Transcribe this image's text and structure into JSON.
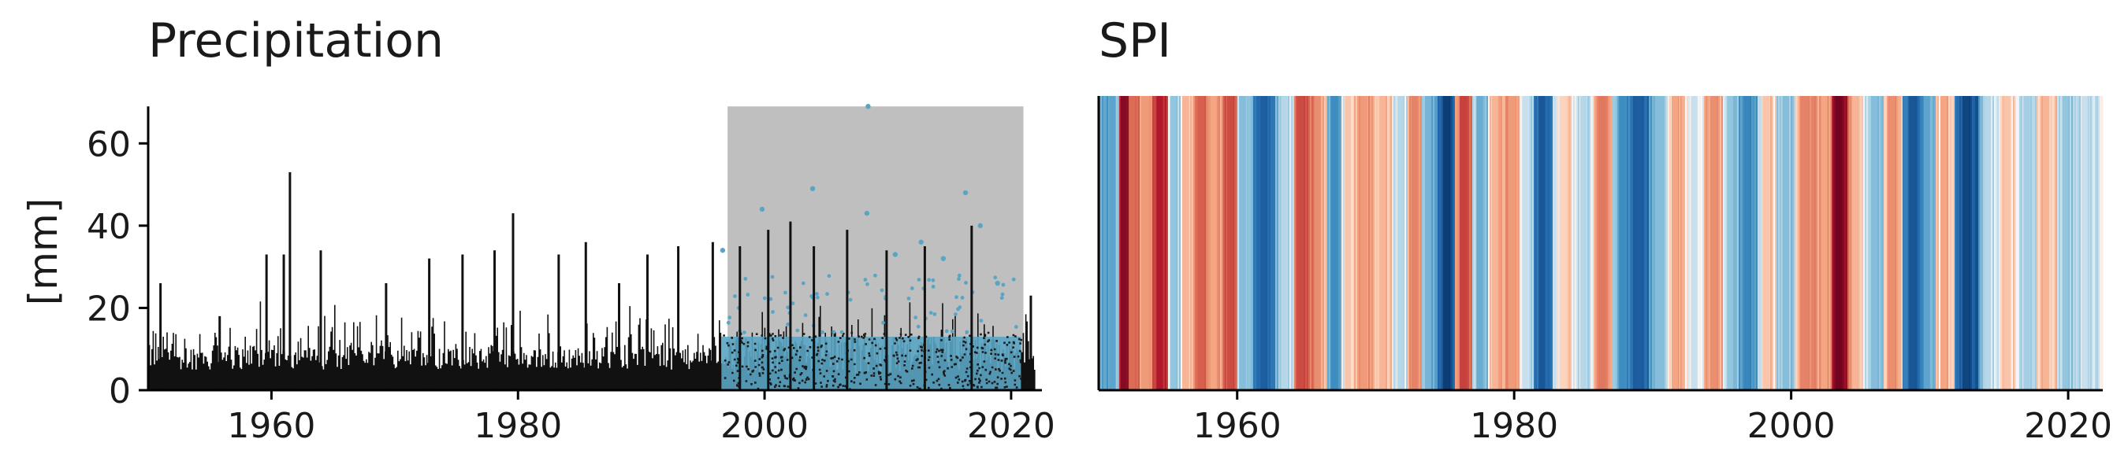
{
  "colors": {
    "precip_bar": "#111111",
    "observed_points": "#5aa5c4",
    "highlight_band": "#bfbfbf",
    "spi_dry": "#b2182b",
    "spi_wet": "#2166ac"
  },
  "chart_data": [
    {
      "type": "bar",
      "title": "Precipitation",
      "xlabel": "",
      "ylabel": "[mm]",
      "xlim": [
        1950,
        2022.5
      ],
      "ylim": [
        0,
        70
      ],
      "x_ticks": [
        "1960",
        "1980",
        "2000",
        "2020"
      ],
      "y_ticks": [
        "0",
        "20",
        "40",
        "60"
      ],
      "highlight_range": [
        1997,
        2021
      ],
      "grid": false,
      "peaks": [
        {
          "x": 1951.0,
          "y": 26
        },
        {
          "x": 1955.8,
          "y": 18
        },
        {
          "x": 1959.6,
          "y": 33
        },
        {
          "x": 1961.0,
          "y": 33
        },
        {
          "x": 1961.5,
          "y": 53
        },
        {
          "x": 1964.0,
          "y": 34
        },
        {
          "x": 1969.3,
          "y": 26
        },
        {
          "x": 1972.8,
          "y": 32
        },
        {
          "x": 1975.5,
          "y": 33
        },
        {
          "x": 1978.1,
          "y": 34
        },
        {
          "x": 1979.6,
          "y": 43
        },
        {
          "x": 1983.3,
          "y": 33
        },
        {
          "x": 1985.5,
          "y": 36
        },
        {
          "x": 1988.2,
          "y": 26
        },
        {
          "x": 1990.5,
          "y": 33
        },
        {
          "x": 1993.0,
          "y": 35
        },
        {
          "x": 1995.8,
          "y": 36
        },
        {
          "x": 1998.0,
          "y": 35
        },
        {
          "x": 2000.3,
          "y": 39
        },
        {
          "x": 2002.1,
          "y": 41
        },
        {
          "x": 2004.0,
          "y": 35
        },
        {
          "x": 2006.7,
          "y": 39
        },
        {
          "x": 2009.9,
          "y": 34
        },
        {
          "x": 2013.0,
          "y": 35
        },
        {
          "x": 2016.8,
          "y": 40
        },
        {
          "x": 2021.6,
          "y": 23
        }
      ],
      "observed_points": [
        {
          "x": 1999.8,
          "y": 44
        },
        {
          "x": 2003.9,
          "y": 49
        },
        {
          "x": 2008.4,
          "y": 69
        },
        {
          "x": 2008.3,
          "y": 43
        },
        {
          "x": 2016.3,
          "y": 48
        },
        {
          "x": 2012.7,
          "y": 36
        },
        {
          "x": 2017.5,
          "y": 40
        },
        {
          "x": 1996.6,
          "y": 34
        },
        {
          "x": 2010.6,
          "y": 33
        },
        {
          "x": 2014.5,
          "y": 32
        },
        {
          "x": 2018.9,
          "y": 26
        }
      ],
      "series": [
        {
          "name": "",
          "role": "daily precipitation",
          "color": "#111111"
        },
        {
          "name": "",
          "role": "points in highlighted period",
          "color": "#5aa5c4"
        }
      ]
    },
    {
      "type": "heatmap",
      "title": "SPI",
      "xlabel": "",
      "ylabel": "",
      "xlim": [
        1950,
        2022.5
      ],
      "x_ticks": [
        "1960",
        "1980",
        "2000",
        "2020"
      ],
      "y_ticks": [],
      "colormap": "RdBu",
      "value_range": [
        -2.5,
        2.5
      ],
      "stripes": [
        {
          "x": 1951.0,
          "v": 0.9
        },
        {
          "x": 1951.8,
          "v": -2.2
        },
        {
          "x": 1952.4,
          "v": -1.0
        },
        {
          "x": 1953.3,
          "v": -0.6
        },
        {
          "x": 1954.4,
          "v": -1.8
        },
        {
          "x": 1955.4,
          "v": 0.5
        },
        {
          "x": 1956.3,
          "v": -0.4
        },
        {
          "x": 1957.4,
          "v": -1.1
        },
        {
          "x": 1958.3,
          "v": -0.5
        },
        {
          "x": 1959.5,
          "v": -1.3
        },
        {
          "x": 1960.4,
          "v": 0.6
        },
        {
          "x": 1961.9,
          "v": 1.9
        },
        {
          "x": 1963.4,
          "v": 0.3
        },
        {
          "x": 1964.6,
          "v": -1.3
        },
        {
          "x": 1965.8,
          "v": -0.7
        },
        {
          "x": 1967.0,
          "v": 1.2
        },
        {
          "x": 1968.0,
          "v": -0.3
        },
        {
          "x": 1969.2,
          "v": -0.6
        },
        {
          "x": 1970.5,
          "v": -0.4
        },
        {
          "x": 1971.8,
          "v": 0.3
        },
        {
          "x": 1972.8,
          "v": -0.8
        },
        {
          "x": 1973.8,
          "v": 0.7
        },
        {
          "x": 1975.1,
          "v": 2.3
        },
        {
          "x": 1976.3,
          "v": -1.4
        },
        {
          "x": 1977.5,
          "v": 0.8
        },
        {
          "x": 1978.6,
          "v": -0.4
        },
        {
          "x": 1979.8,
          "v": -0.6
        },
        {
          "x": 1980.8,
          "v": 0.2
        },
        {
          "x": 1982.0,
          "v": 2.0
        },
        {
          "x": 1983.5,
          "v": -0.2
        },
        {
          "x": 1985.0,
          "v": 0.3
        },
        {
          "x": 1986.4,
          "v": -0.9
        },
        {
          "x": 1987.8,
          "v": 1.2
        },
        {
          "x": 1989.0,
          "v": 1.9
        },
        {
          "x": 1990.4,
          "v": 0.6
        },
        {
          "x": 1991.6,
          "v": -0.5
        },
        {
          "x": 1993.0,
          "v": 0.2
        },
        {
          "x": 1994.4,
          "v": -0.7
        },
        {
          "x": 1995.6,
          "v": 0.5
        },
        {
          "x": 1996.8,
          "v": 1.3
        },
        {
          "x": 1998.2,
          "v": -0.3
        },
        {
          "x": 1999.6,
          "v": 0.6
        },
        {
          "x": 2001.0,
          "v": -0.8
        },
        {
          "x": 2002.4,
          "v": -0.5
        },
        {
          "x": 2003.4,
          "v": -2.4
        },
        {
          "x": 2004.6,
          "v": -0.4
        },
        {
          "x": 2006.0,
          "v": 0.6
        },
        {
          "x": 2007.3,
          "v": -0.7
        },
        {
          "x": 2008.7,
          "v": 2.0
        },
        {
          "x": 2009.8,
          "v": 0.9
        },
        {
          "x": 2011.0,
          "v": -0.5
        },
        {
          "x": 2012.6,
          "v": 2.2
        },
        {
          "x": 2014.2,
          "v": 0.3
        },
        {
          "x": 2015.6,
          "v": -0.3
        },
        {
          "x": 2017.0,
          "v": 0.4
        },
        {
          "x": 2018.4,
          "v": -0.4
        },
        {
          "x": 2019.8,
          "v": 0.5
        },
        {
          "x": 2021.2,
          "v": 0.2
        }
      ]
    }
  ]
}
